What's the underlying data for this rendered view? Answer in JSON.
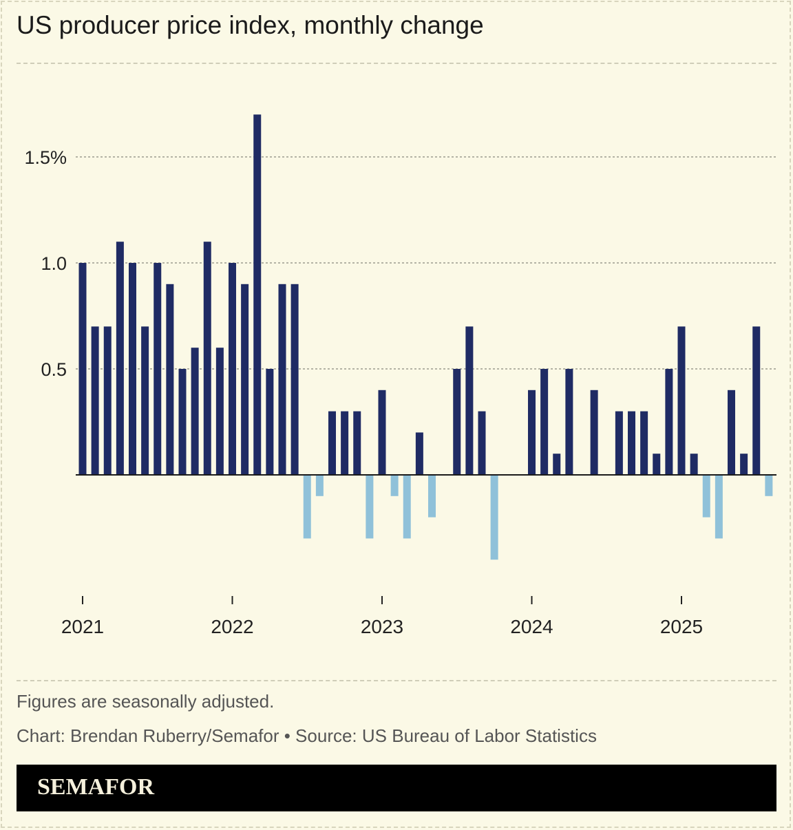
{
  "title": "US producer price index, monthly change",
  "notes": {
    "adjusted": "Figures are seasonally adjusted.",
    "credit": "Chart: Brendan Ruberry/Semafor • Source: US Bureau of Labor Statistics"
  },
  "footer": {
    "logo": "SEMAFOR"
  },
  "colors": {
    "background": "#fbf9e6",
    "positive": "#1f2b64",
    "negative": "#8fc1d9",
    "grid": "#9b9b8d",
    "footer": "#000000"
  },
  "chart_data": {
    "type": "bar",
    "title": "US producer price index, monthly change",
    "xlabel": "",
    "ylabel": "",
    "ylim": [
      -0.5,
      1.7
    ],
    "yticks": [
      {
        "value": 1.5,
        "label": "1.5%"
      },
      {
        "value": 1.0,
        "label": "1.0"
      },
      {
        "value": 0.5,
        "label": "0.5"
      }
    ],
    "xticks": [
      {
        "index": 0,
        "label": "2021"
      },
      {
        "index": 12,
        "label": "2022"
      },
      {
        "index": 24,
        "label": "2023"
      },
      {
        "index": 36,
        "label": "2024"
      },
      {
        "index": 48,
        "label": "2025"
      }
    ],
    "start": "2021-01",
    "values": [
      1.0,
      0.7,
      0.7,
      1.1,
      1.0,
      0.7,
      1.0,
      0.9,
      0.5,
      0.6,
      1.1,
      0.6,
      1.0,
      0.9,
      1.7,
      0.5,
      0.9,
      0.9,
      -0.3,
      -0.1,
      0.3,
      0.3,
      0.3,
      -0.3,
      0.4,
      -0.1,
      -0.3,
      0.2,
      -0.2,
      0.0,
      0.5,
      0.7,
      0.3,
      -0.4,
      0.0,
      0.0,
      0.4,
      0.5,
      0.1,
      0.5,
      0.0,
      0.4,
      0.0,
      0.3,
      0.3,
      0.3,
      0.1,
      0.5,
      0.7,
      0.1,
      -0.2,
      -0.3,
      0.4,
      0.1,
      0.7,
      -0.1
    ],
    "grid": true
  }
}
